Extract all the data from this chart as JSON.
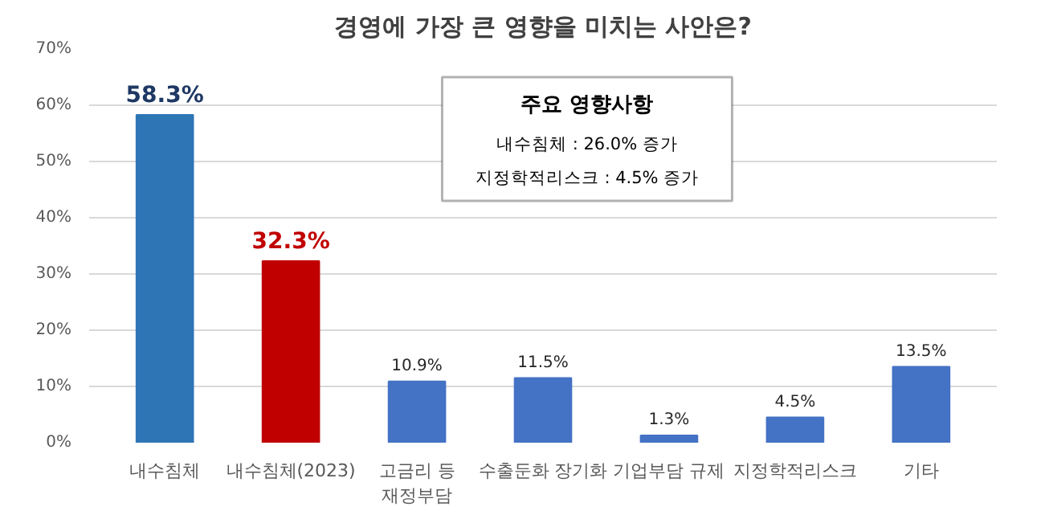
{
  "chart_data": {
    "type": "bar",
    "title": "경영에 가장 큰 영향을 미치는 사안은?",
    "categories": [
      "내수침체",
      "내수침체(2023)",
      "고금리 등\n재정부담",
      "수출둔화 장기화",
      "기업부담 규제",
      "지정학적리스크",
      "기타"
    ],
    "values": [
      58.3,
      32.3,
      10.9,
      11.5,
      1.3,
      4.5,
      13.5
    ],
    "colors": [
      "#2e75b6",
      "#c00000",
      "#4472c4",
      "#4472c4",
      "#4472c4",
      "#4472c4",
      "#4472c4"
    ],
    "value_labels": [
      "58.3%",
      "32.3%",
      "10.9%",
      "11.5%",
      "1.3%",
      "4.5%",
      "13.5%"
    ],
    "ylim": [
      0,
      70
    ],
    "yticks": [
      {
        "value": 0,
        "label": "0%"
      },
      {
        "value": 10,
        "label": "10%"
      },
      {
        "value": 20,
        "label": "20%"
      },
      {
        "value": 30,
        "label": "30%"
      },
      {
        "value": 40,
        "label": "40%"
      },
      {
        "value": 50,
        "label": "50%"
      },
      {
        "value": 60,
        "label": "60%"
      },
      {
        "value": 70,
        "label": "70%"
      }
    ],
    "grid": "y",
    "annotations": [
      "주요 영향사항",
      "내수침체 : 26.0% 증가",
      "지정학적리스크 : 4.5% 증가"
    ]
  }
}
